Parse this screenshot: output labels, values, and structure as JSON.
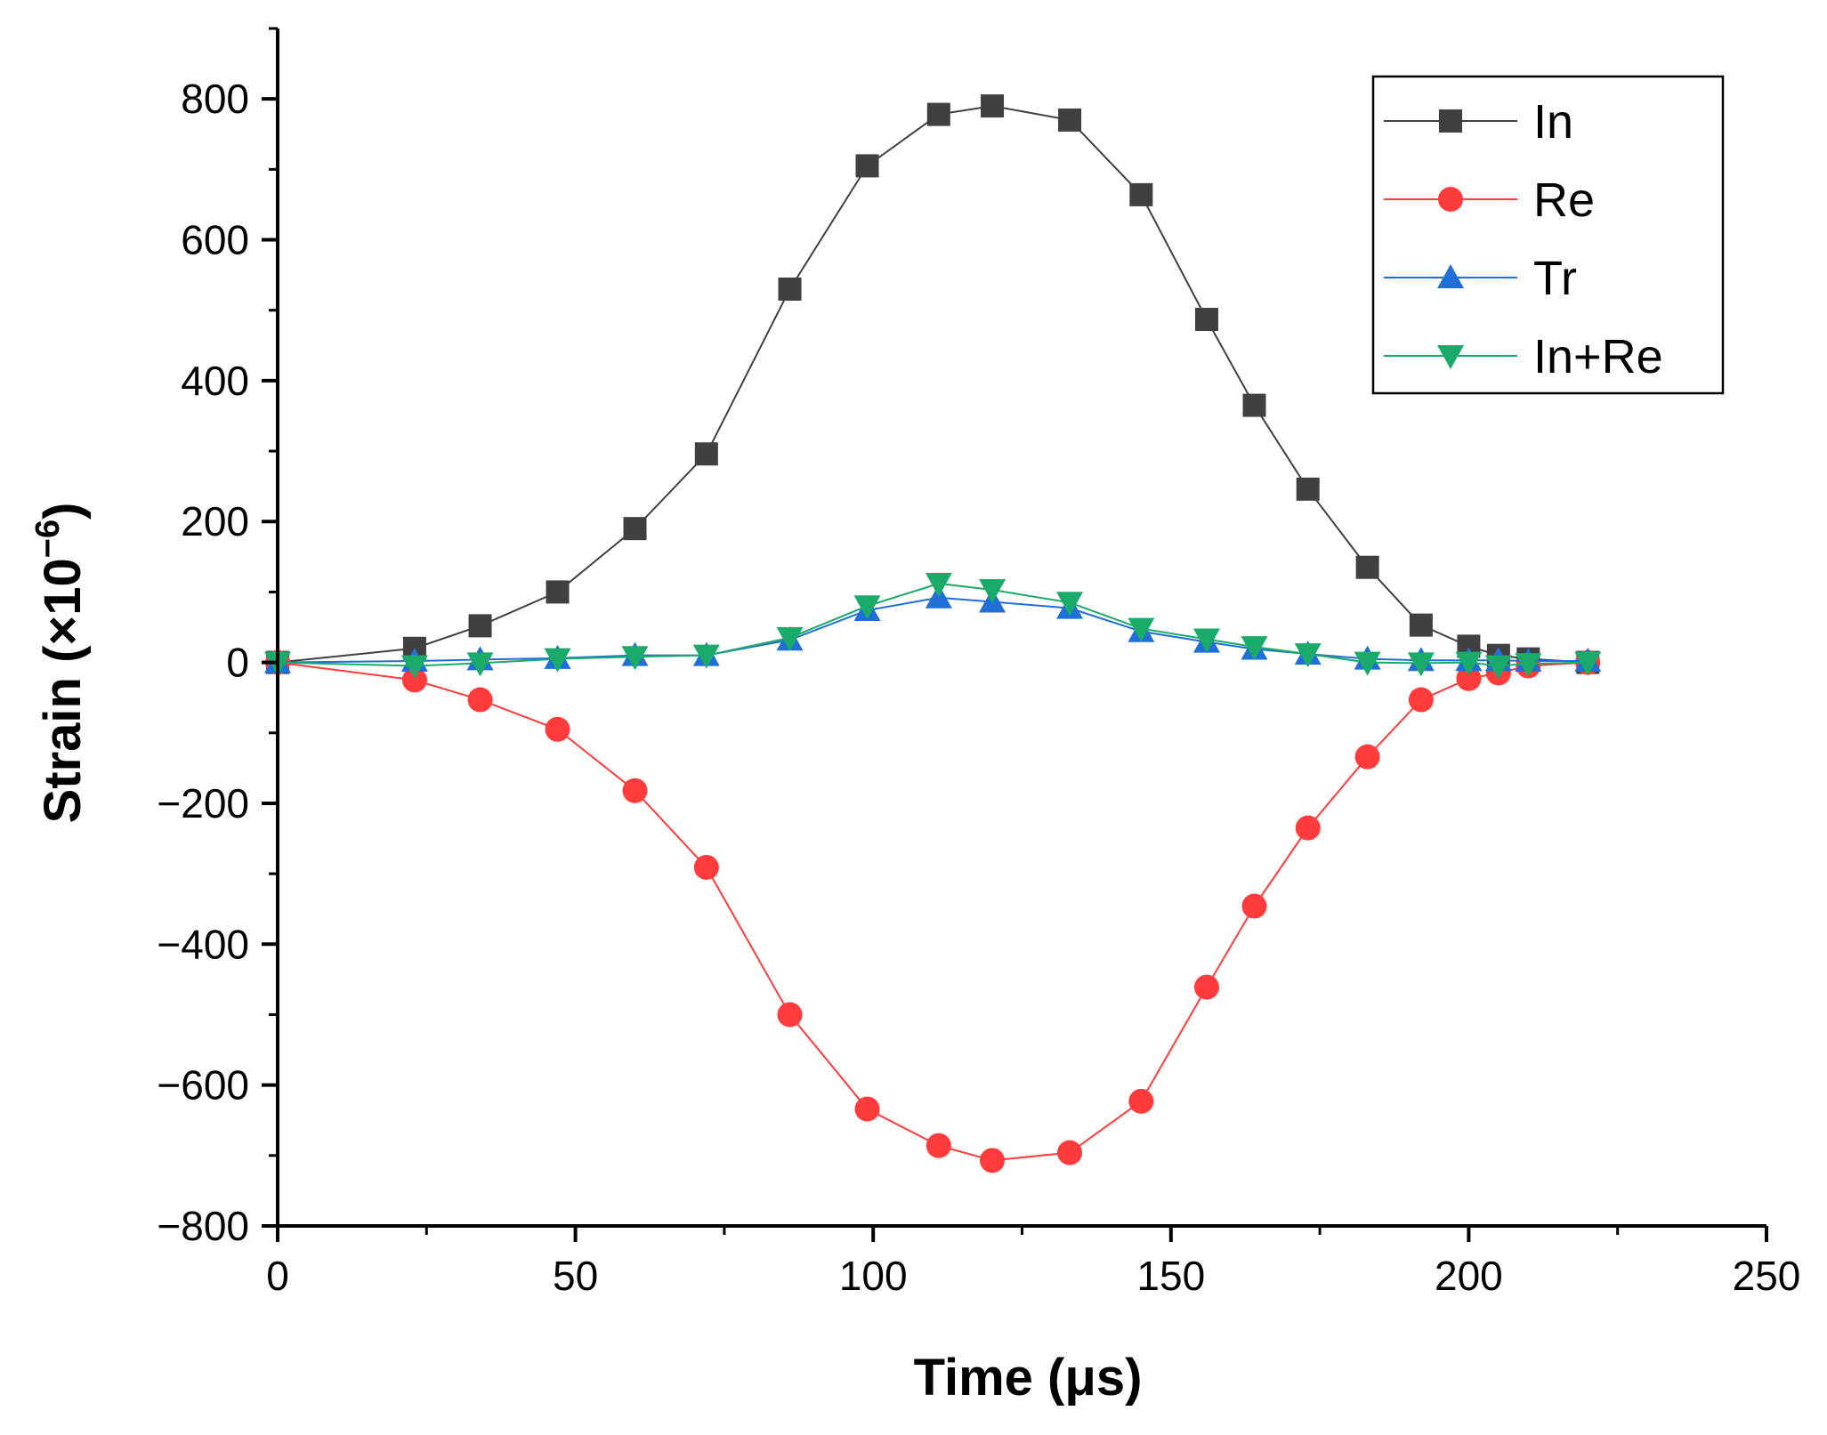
{
  "chart_data": {
    "type": "line",
    "xlabel": "Time (μs)",
    "ylabel_main": "Strain (×10",
    "ylabel_exp": "−6",
    "ylabel_close": ")",
    "xlim": [
      0,
      250
    ],
    "ylim": [
      -800,
      900
    ],
    "xticks": [
      0,
      50,
      100,
      150,
      200,
      250
    ],
    "xtick_labels": [
      "0",
      "50",
      "100",
      "150",
      "200",
      "250"
    ],
    "yticks": [
      -800,
      -600,
      -400,
      -200,
      0,
      200,
      400,
      600,
      800
    ],
    "ytick_labels": [
      "−800",
      "−600",
      "−400",
      "−200",
      "0",
      "200",
      "400",
      "600",
      "800"
    ],
    "grid": false,
    "legend_position": "top-right",
    "series": [
      {
        "name": "In",
        "color": "#404040",
        "marker": "square",
        "x": [
          0,
          23,
          34,
          47,
          60,
          72,
          86,
          99,
          111,
          120,
          133,
          145,
          156,
          164,
          173,
          183,
          192,
          200,
          205,
          210,
          220
        ],
        "y": [
          0,
          20,
          52,
          100,
          190,
          296,
          530,
          705,
          778,
          790,
          770,
          664,
          487,
          365,
          246,
          135,
          53,
          23,
          10,
          5,
          0
        ]
      },
      {
        "name": "Re",
        "color": "#ff3b3b",
        "marker": "circle",
        "x": [
          0,
          23,
          34,
          47,
          60,
          72,
          86,
          99,
          111,
          120,
          133,
          145,
          156,
          164,
          173,
          183,
          192,
          200,
          205,
          210,
          220
        ],
        "y": [
          0,
          -25,
          -53,
          -95,
          -182,
          -291,
          -500,
          -634,
          -686,
          -707,
          -696,
          -623,
          -461,
          -346,
          -235,
          -134,
          -53,
          -23,
          -15,
          -5,
          0
        ]
      },
      {
        "name": "Tr",
        "color": "#1f6fd6",
        "marker": "triangle-up",
        "x": [
          0,
          23,
          34,
          47,
          60,
          72,
          86,
          99,
          111,
          120,
          133,
          145,
          156,
          164,
          173,
          183,
          192,
          200,
          205,
          210,
          220
        ],
        "y": [
          0,
          2,
          4,
          6,
          10,
          10,
          32,
          74,
          92,
          86,
          77,
          44,
          29,
          19,
          12,
          5,
          3,
          3,
          3,
          2,
          2
        ]
      },
      {
        "name": "In+Re",
        "color": "#1aaa6a",
        "marker": "triangle-down",
        "x": [
          0,
          23,
          34,
          47,
          60,
          72,
          86,
          99,
          111,
          120,
          133,
          145,
          156,
          164,
          173,
          183,
          192,
          200,
          205,
          210,
          220
        ],
        "y": [
          0,
          -5,
          -1,
          5,
          8,
          10,
          35,
          80,
          112,
          103,
          85,
          48,
          33,
          22,
          12,
          0,
          -1,
          0,
          -5,
          -2,
          0
        ]
      }
    ]
  }
}
